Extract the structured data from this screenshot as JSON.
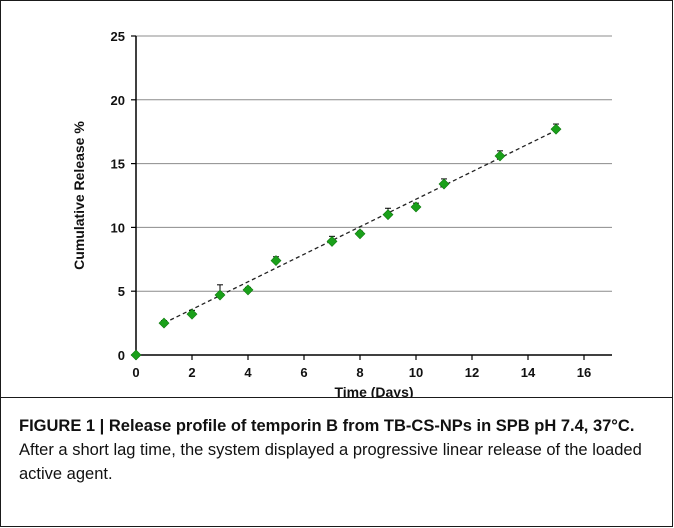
{
  "chart_data": {
    "type": "scatter",
    "ylabel": "Cumulative Release %",
    "xlabel": "Time (Days)",
    "xlim": [
      0,
      17
    ],
    "ylim": [
      0,
      25
    ],
    "xticks": [
      0,
      2,
      4,
      6,
      8,
      10,
      12,
      14,
      16
    ],
    "yticks": [
      0,
      5,
      10,
      15,
      20,
      25
    ],
    "grid": "horizontal",
    "marker_color": "#1aa01a",
    "trendline": {
      "style": "dashed",
      "x": [
        1,
        15
      ],
      "y": [
        2.5,
        17.6
      ]
    },
    "series": [
      {
        "x": [
          0,
          1,
          2,
          3,
          4,
          5,
          7,
          8,
          9,
          10,
          11,
          13,
          15
        ],
        "y": [
          0,
          2.5,
          3.2,
          4.7,
          5.1,
          7.4,
          8.9,
          9.5,
          11.0,
          11.6,
          13.4,
          15.6,
          17.7
        ],
        "error": [
          0,
          0.2,
          0.3,
          0.8,
          0.2,
          0.3,
          0.4,
          0.2,
          0.5,
          0.3,
          0.4,
          0.4,
          0.4
        ]
      }
    ]
  },
  "caption": {
    "bold": "FIGURE 1 | Release profile of temporin B from TB-CS-NPs in SPB pH 7.4, 37°C.",
    "text": " After a short lag time, the system displayed a progressive linear release of the loaded active agent."
  }
}
